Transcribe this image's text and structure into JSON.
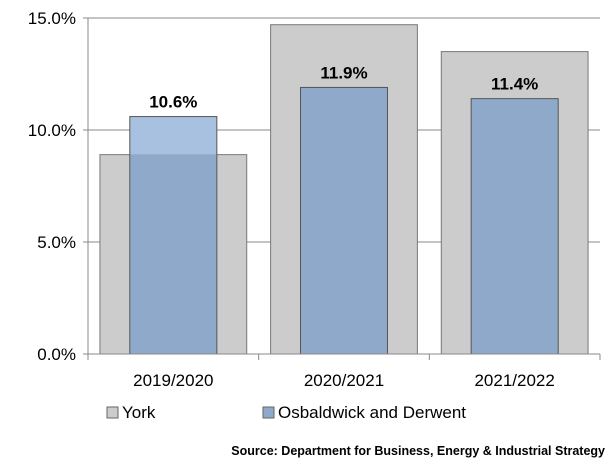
{
  "chart_data": {
    "type": "bar",
    "categories": [
      "2019/2020",
      "2020/2021",
      "2021/2022"
    ],
    "series": [
      {
        "name": "York",
        "values": [
          8.9,
          14.7,
          13.5
        ],
        "color": "#cccccc"
      },
      {
        "name": "Osbaldwick and Derwent",
        "values": [
          10.6,
          11.9,
          11.4
        ],
        "color": "#8ea9c9",
        "overlap_color": "#a9c1e0"
      }
    ],
    "data_labels": [
      "10.6%",
      "11.9%",
      "11.4%"
    ],
    "y_ticks": [
      "0.0%",
      "5.0%",
      "10.0%",
      "15.0%"
    ],
    "ylim": [
      0,
      15
    ],
    "grid": true,
    "legend_position": "bottom"
  },
  "source": "Source: Department for Business, Energy & Industrial Strategy"
}
